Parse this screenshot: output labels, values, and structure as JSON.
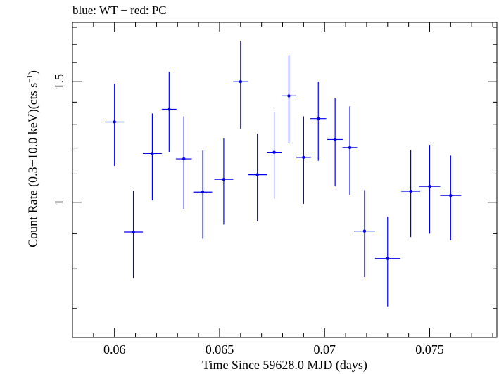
{
  "chart_data": {
    "type": "scatter",
    "title": "blue: WT − red: PC",
    "xlabel": "Time Since 59628.0 MJD (days)",
    "ylabel": {
      "prefix": "Count Rate (0.3−10.0 keV)(cts s",
      "superscript": "−1",
      "suffix": ")"
    },
    "xlim": [
      0.058,
      0.0782
    ],
    "ylim": [
      0.635,
      1.83
    ],
    "log_y": true,
    "grid": false,
    "x_ticks": [
      {
        "value": 0.06,
        "label": "0.06"
      },
      {
        "value": 0.065,
        "label": "0.065"
      },
      {
        "value": 0.07,
        "label": "0.07"
      },
      {
        "value": 0.075,
        "label": "0.075"
      }
    ],
    "y_ticks": [
      {
        "value": 1.0,
        "label": "1"
      },
      {
        "value": 1.5,
        "label": "1.5"
      }
    ],
    "series": [
      {
        "color": "#0000ee",
        "points": [
          {
            "x": 0.06,
            "xerr": 0.00045,
            "y": 1.31,
            "ylo": 1.13,
            "yhi": 1.49
          },
          {
            "x": 0.0609,
            "xerr": 0.00045,
            "y": 0.905,
            "ylo": 0.775,
            "yhi": 1.04
          },
          {
            "x": 0.0618,
            "xerr": 0.00045,
            "y": 1.178,
            "ylo": 1.007,
            "yhi": 1.348
          },
          {
            "x": 0.0626,
            "xerr": 0.00035,
            "y": 1.367,
            "ylo": 1.185,
            "yhi": 1.55
          },
          {
            "x": 0.0633,
            "xerr": 0.00038,
            "y": 1.157,
            "ylo": 0.978,
            "yhi": 1.335
          },
          {
            "x": 0.0642,
            "xerr": 0.00045,
            "y": 1.035,
            "ylo": 0.885,
            "yhi": 1.19
          },
          {
            "x": 0.0652,
            "xerr": 0.00045,
            "y": 1.08,
            "ylo": 0.928,
            "yhi": 1.24
          },
          {
            "x": 0.066,
            "xerr": 0.00035,
            "y": 1.5,
            "ylo": 1.28,
            "yhi": 1.72
          },
          {
            "x": 0.0668,
            "xerr": 0.00045,
            "y": 1.097,
            "ylo": 0.938,
            "yhi": 1.26
          },
          {
            "x": 0.0676,
            "xerr": 0.00035,
            "y": 1.183,
            "ylo": 1.012,
            "yhi": 1.355
          },
          {
            "x": 0.0683,
            "xerr": 0.00035,
            "y": 1.43,
            "ylo": 1.222,
            "yhi": 1.64
          },
          {
            "x": 0.069,
            "xerr": 0.00035,
            "y": 1.163,
            "ylo": 0.995,
            "yhi": 1.335
          },
          {
            "x": 0.0697,
            "xerr": 0.00038,
            "y": 1.325,
            "ylo": 1.15,
            "yhi": 1.5
          },
          {
            "x": 0.0705,
            "xerr": 0.00038,
            "y": 1.235,
            "ylo": 1.055,
            "yhi": 1.418
          },
          {
            "x": 0.0712,
            "xerr": 0.00035,
            "y": 1.202,
            "ylo": 1.025,
            "yhi": 1.38
          },
          {
            "x": 0.0719,
            "xerr": 0.0005,
            "y": 0.908,
            "ylo": 0.778,
            "yhi": 1.042
          },
          {
            "x": 0.073,
            "xerr": 0.0006,
            "y": 0.828,
            "ylo": 0.705,
            "yhi": 0.953
          },
          {
            "x": 0.0741,
            "xerr": 0.00045,
            "y": 1.038,
            "ylo": 0.89,
            "yhi": 1.192
          },
          {
            "x": 0.075,
            "xerr": 0.0005,
            "y": 1.055,
            "ylo": 0.9,
            "yhi": 1.213
          },
          {
            "x": 0.076,
            "xerr": 0.0005,
            "y": 1.023,
            "ylo": 0.88,
            "yhi": 1.17
          }
        ]
      }
    ]
  }
}
